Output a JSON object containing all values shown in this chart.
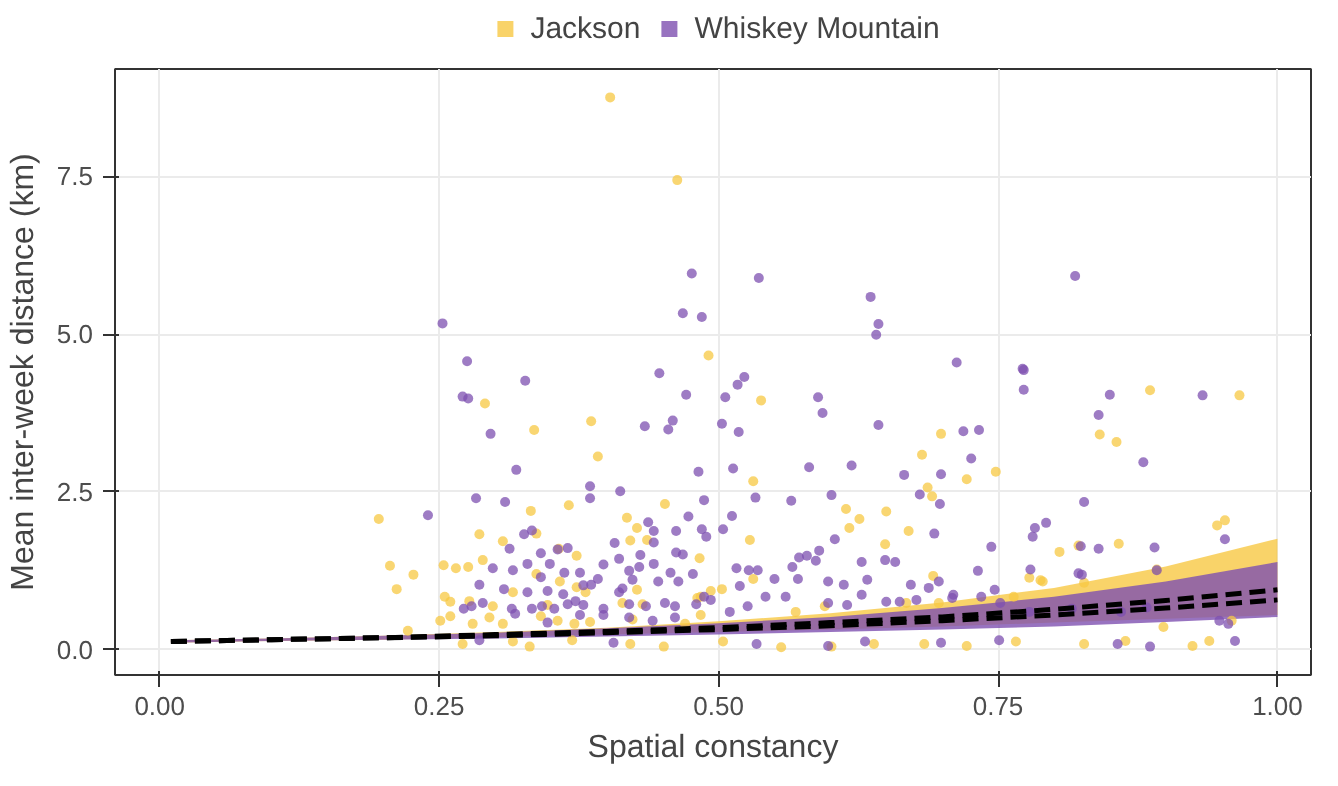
{
  "chart_data": {
    "type": "scatter",
    "xlabel": "Spatial constancy",
    "ylabel": "Mean inter-week distance (km)",
    "xlim": [
      -0.04,
      1.03
    ],
    "ylim": [
      -0.4,
      9.2
    ],
    "xticks": [
      {
        "value": 0,
        "label": "0.00"
      },
      {
        "value": 0.25,
        "label": "0.25"
      },
      {
        "value": 0.5,
        "label": "0.50"
      },
      {
        "value": 0.75,
        "label": "0.75"
      },
      {
        "value": 1,
        "label": "1.00"
      }
    ],
    "yticks": [
      {
        "value": 0,
        "label": "0.0"
      },
      {
        "value": 2.5,
        "label": "2.5"
      },
      {
        "value": 5,
        "label": "5.0"
      },
      {
        "value": 7.5,
        "label": "7.5"
      }
    ],
    "grid": true,
    "legend": "top",
    "marker": "circle",
    "series": [
      {
        "name": "Jackson",
        "color": "#f7c843",
        "x": [
          0.403,
          0.463,
          0.491,
          0.291,
          0.386,
          0.335,
          0.392,
          0.452,
          0.196,
          0.332,
          0.366,
          0.337,
          0.286,
          0.307,
          0.418,
          0.427,
          0.436,
          0.421,
          0.206,
          0.227,
          0.212,
          0.254,
          0.265,
          0.276,
          0.289,
          0.357,
          0.373,
          0.337,
          0.316,
          0.358,
          0.373,
          0.381,
          0.427,
          0.255,
          0.26,
          0.277,
          0.298,
          0.347,
          0.414,
          0.432,
          0.481,
          0.251,
          0.26,
          0.28,
          0.295,
          0.307,
          0.341,
          0.356,
          0.371,
          0.385,
          0.423,
          0.47,
          0.484,
          0.222,
          0.271,
          0.316,
          0.331,
          0.369,
          0.421,
          0.451,
          0.504,
          0.556,
          0.601,
          0.639,
          0.684,
          0.722,
          0.766,
          0.827,
          0.864,
          0.924,
          0.939,
          0.538,
          0.886,
          0.966,
          0.841,
          0.856,
          0.699,
          0.682,
          0.531,
          0.722,
          0.748,
          0.687,
          0.691,
          0.614,
          0.65,
          0.626,
          0.617,
          0.946,
          0.953,
          0.528,
          0.67,
          0.649,
          0.805,
          0.822,
          0.858,
          0.483,
          0.692,
          0.778,
          0.788,
          0.531,
          0.503,
          0.484,
          0.493,
          0.569,
          0.595,
          0.668,
          0.697,
          0.764,
          0.79,
          0.827,
          0.892,
          0.959,
          0.898
        ],
        "values": [
          8.75,
          7.44,
          4.66,
          3.9,
          3.62,
          3.48,
          3.06,
          2.31,
          2.07,
          2.2,
          2.29,
          1.84,
          1.83,
          1.72,
          2.09,
          1.93,
          1.74,
          1.73,
          1.33,
          1.19,
          0.96,
          1.34,
          1.29,
          1.31,
          1.42,
          1.6,
          1.49,
          1.2,
          0.91,
          1.08,
          0.99,
          0.91,
          0.95,
          0.84,
          0.76,
          0.77,
          0.69,
          0.71,
          0.74,
          0.72,
          0.82,
          0.46,
          0.53,
          0.41,
          0.51,
          0.41,
          0.53,
          0.46,
          0.41,
          0.44,
          0.48,
          0.41,
          0.55,
          0.3,
          0.09,
          0.13,
          0.05,
          0.15,
          0.09,
          0.05,
          0.13,
          0.04,
          0.05,
          0.09,
          0.09,
          0.06,
          0.13,
          0.09,
          0.14,
          0.06,
          0.14,
          3.95,
          4.11,
          4.03,
          3.41,
          3.29,
          3.42,
          3.09,
          2.67,
          2.7,
          2.82,
          2.57,
          2.43,
          2.23,
          2.19,
          2.07,
          1.93,
          1.97,
          2.05,
          1.74,
          1.88,
          1.67,
          1.55,
          1.65,
          1.68,
          1.45,
          1.17,
          1.14,
          1.1,
          1.12,
          0.96,
          0.84,
          0.93,
          0.6,
          0.69,
          0.74,
          0.74,
          0.84,
          1.08,
          1.06,
          1.27,
          0.46,
          0.36
        ]
      },
      {
        "name": "Whiskey Mountain",
        "color": "#7e50b0",
        "x": [
          0.476,
          0.468,
          0.485,
          0.253,
          0.275,
          0.327,
          0.447,
          0.536,
          0.636,
          0.643,
          0.641,
          0.523,
          0.517,
          0.713,
          0.772,
          0.819,
          0.471,
          0.271,
          0.276,
          0.434,
          0.455,
          0.459,
          0.296,
          0.482,
          0.319,
          0.385,
          0.412,
          0.283,
          0.309,
          0.385,
          0.487,
          0.24,
          0.473,
          0.326,
          0.333,
          0.313,
          0.407,
          0.437,
          0.442,
          0.462,
          0.485,
          0.489,
          0.442,
          0.365,
          0.356,
          0.341,
          0.462,
          0.468,
          0.43,
          0.286,
          0.298,
          0.316,
          0.329,
          0.349,
          0.362,
          0.341,
          0.376,
          0.397,
          0.386,
          0.411,
          0.42,
          0.429,
          0.442,
          0.457,
          0.446,
          0.464,
          0.477,
          0.308,
          0.329,
          0.347,
          0.361,
          0.379,
          0.392,
          0.411,
          0.414,
          0.423,
          0.289,
          0.272,
          0.279,
          0.315,
          0.333,
          0.342,
          0.353,
          0.365,
          0.372,
          0.379,
          0.397,
          0.42,
          0.435,
          0.452,
          0.461,
          0.48,
          0.487,
          0.318,
          0.347,
          0.376,
          0.397,
          0.42,
          0.441,
          0.461,
          0.286,
          0.406,
          0.534,
          0.598,
          0.631,
          0.699,
          0.751,
          0.857,
          0.886,
          0.962,
          0.506,
          0.589,
          0.593,
          0.773,
          0.773,
          0.85,
          0.933,
          0.84,
          0.503,
          0.518,
          0.643,
          0.719,
          0.733,
          0.726,
          0.88,
          0.513,
          0.581,
          0.619,
          0.666,
          0.699,
          0.68,
          0.698,
          0.533,
          0.565,
          0.601,
          0.827,
          0.512,
          0.793,
          0.783,
          0.781,
          0.953,
          0.504,
          0.693,
          0.604,
          0.59,
          0.579,
          0.572,
          0.744,
          0.84,
          0.89,
          0.824,
          0.628,
          0.649,
          0.658,
          0.516,
          0.527,
          0.535,
          0.566,
          0.587,
          0.732,
          0.779,
          0.822,
          0.892,
          0.519,
          0.55,
          0.571,
          0.598,
          0.612,
          0.633,
          0.697,
          0.672,
          0.688,
          0.71,
          0.747,
          0.825,
          0.493,
          0.51,
          0.526,
          0.542,
          0.56,
          0.598,
          0.615,
          0.628,
          0.65,
          0.662,
          0.677,
          0.709,
          0.735,
          0.752,
          0.778,
          0.816,
          0.86,
          0.883,
          0.948,
          0.956
        ],
        "values": [
          5.96,
          5.33,
          5.27,
          5.17,
          4.57,
          4.26,
          4.38,
          5.89,
          5.59,
          5.16,
          4.99,
          4.32,
          4.2,
          4.55,
          4.45,
          5.92,
          4.04,
          4.01,
          3.98,
          3.54,
          3.49,
          3.63,
          3.42,
          2.82,
          2.85,
          2.59,
          2.51,
          2.4,
          2.34,
          2.4,
          2.37,
          2.13,
          2.11,
          1.83,
          1.89,
          1.6,
          1.69,
          2.02,
          1.88,
          1.88,
          1.91,
          1.79,
          1.7,
          1.61,
          1.59,
          1.53,
          1.54,
          1.51,
          1.5,
          1.03,
          1.29,
          1.26,
          1.36,
          1.36,
          1.22,
          1.15,
          1.22,
          1.35,
          1.03,
          1.44,
          1.25,
          1.31,
          1.36,
          1.22,
          1.08,
          1.08,
          1.2,
          0.96,
          0.91,
          0.93,
          0.88,
          1.02,
          1.12,
          0.91,
          0.97,
          1.11,
          0.74,
          0.65,
          0.69,
          0.65,
          0.65,
          0.69,
          0.65,
          0.72,
          0.77,
          0.71,
          0.65,
          0.72,
          0.69,
          0.74,
          0.69,
          0.72,
          0.84,
          0.57,
          0.43,
          0.55,
          0.55,
          0.51,
          0.46,
          0.51,
          0.15,
          0.11,
          0.09,
          0.06,
          0.13,
          0.11,
          0.15,
          0.09,
          0.05,
          0.14,
          4.0,
          4.0,
          3.75,
          4.43,
          4.12,
          4.04,
          4.03,
          3.72,
          3.58,
          3.45,
          3.56,
          3.46,
          3.48,
          3.03,
          2.97,
          2.87,
          2.89,
          2.92,
          2.77,
          2.78,
          2.46,
          2.31,
          2.41,
          2.36,
          2.45,
          2.34,
          2.12,
          2.01,
          1.93,
          1.79,
          1.75,
          1.91,
          1.84,
          1.75,
          1.57,
          1.49,
          1.46,
          1.63,
          1.6,
          1.62,
          1.64,
          1.39,
          1.42,
          1.39,
          1.29,
          1.26,
          1.26,
          1.31,
          1.41,
          1.25,
          1.27,
          1.21,
          1.26,
          1.01,
          1.12,
          1.12,
          1.08,
          1.03,
          1.11,
          1.08,
          1.03,
          0.98,
          0.87,
          0.95,
          1.19,
          0.79,
          0.6,
          0.69,
          0.84,
          0.84,
          0.74,
          0.71,
          0.87,
          0.76,
          0.76,
          0.79,
          0.82,
          0.84,
          0.74,
          0.6,
          0.65,
          0.6,
          0.67,
          0.46,
          0.41
        ]
      },
      {
        "type": "line",
        "color": "#000000",
        "line_style": "dashed",
        "marker": "none",
        "x": [
          0.01,
          0.1,
          0.2,
          0.3,
          0.4,
          0.5,
          0.6,
          0.7,
          0.8,
          0.9,
          1.0
        ],
        "values": [
          0.13,
          0.16,
          0.19,
          0.24,
          0.29,
          0.35,
          0.43,
          0.52,
          0.64,
          0.78,
          0.95
        ],
        "lower": [
          0.11,
          0.14,
          0.16,
          0.2,
          0.24,
          0.28,
          0.32,
          0.37,
          0.43,
          0.49,
          0.55
        ],
        "upper": [
          0.15,
          0.18,
          0.22,
          0.28,
          0.35,
          0.45,
          0.58,
          0.75,
          0.98,
          1.32,
          1.76
        ]
      },
      {
        "type": "line",
        "color": "#000000",
        "line_style": "dashed",
        "marker": "none",
        "x": [
          0.01,
          0.1,
          0.2,
          0.3,
          0.4,
          0.5,
          0.6,
          0.7,
          0.8,
          0.9,
          1.0
        ],
        "values": [
          0.13,
          0.16,
          0.19,
          0.22,
          0.27,
          0.32,
          0.38,
          0.46,
          0.55,
          0.66,
          0.79
        ],
        "lower": [
          0.11,
          0.14,
          0.16,
          0.18,
          0.21,
          0.24,
          0.28,
          0.32,
          0.37,
          0.44,
          0.52
        ],
        "upper": [
          0.15,
          0.18,
          0.22,
          0.27,
          0.34,
          0.42,
          0.52,
          0.66,
          0.84,
          1.08,
          1.39
        ]
      }
    ]
  }
}
